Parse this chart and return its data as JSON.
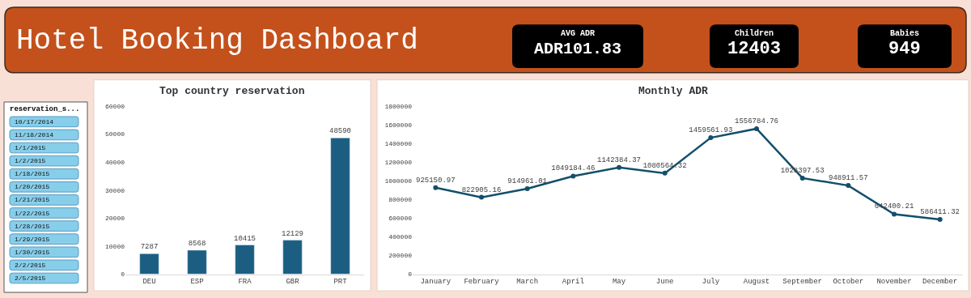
{
  "chart_data": [
    {
      "type": "other",
      "title": "Hotel Booking Dashboard",
      "annotations": [
        "AVG ADR",
        "ADR101.83",
        "Children",
        "12403",
        "Babies",
        "949"
      ]
    },
    {
      "type": "other",
      "title": "reservation_s...",
      "annotations": [
        "10/17/2014",
        "11/18/2014",
        "1/1/2015",
        "1/2/2015",
        "1/18/2015",
        "1/20/2015",
        "1/21/2015",
        "1/22/2015",
        "1/28/2015",
        "1/29/2015",
        "1/30/2015",
        "2/2/2015",
        "2/5/2015"
      ]
    },
    {
      "type": "bar",
      "title": "Top country reservation",
      "categories": [
        "DEU",
        "ESP",
        "FRA",
        "GBR",
        "PRT"
      ],
      "values": [
        7287,
        8568,
        10415,
        12129,
        48590
      ],
      "color": "#1b5e82",
      "ylim": [
        0,
        60000
      ],
      "yticks": [
        0,
        10000,
        20000,
        30000,
        40000,
        50000,
        60000
      ],
      "data_labels": true
    },
    {
      "type": "line",
      "title": "Monthly ADR",
      "categories": [
        "January",
        "February",
        "March",
        "April",
        "May",
        "June",
        "July",
        "August",
        "September",
        "October",
        "November",
        "December"
      ],
      "values": [
        925150.97,
        822905.16,
        914961.01,
        1049184.46,
        1142384.37,
        1080564.32,
        1459561.93,
        1556784.76,
        1028397.53,
        948911.57,
        642400.21,
        586411.32
      ],
      "color": "#134f6b",
      "marker": "circle",
      "line_style": "solid",
      "ylim": [
        0,
        1800000
      ],
      "yticks": [
        0,
        200000,
        400000,
        600000,
        800000,
        1000000,
        1200000,
        1400000,
        1600000,
        1800000
      ],
      "data_labels": true
    }
  ]
}
